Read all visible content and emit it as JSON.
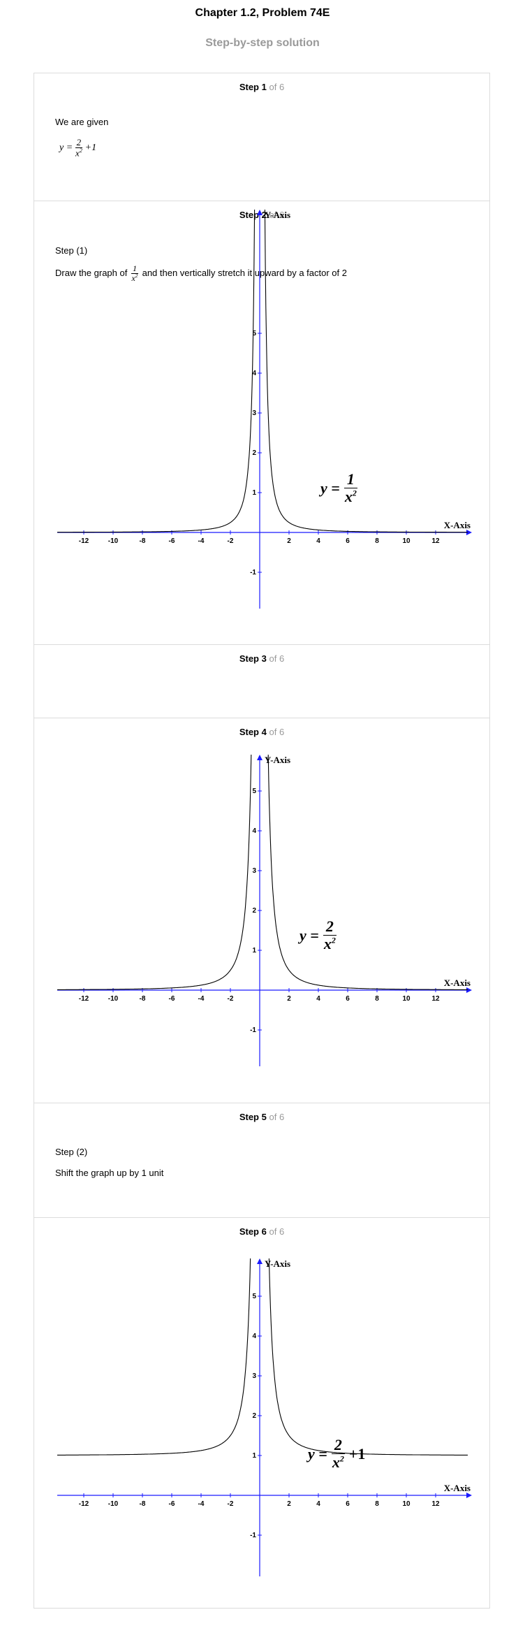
{
  "header": {
    "title": "Chapter 1.2, Problem 74E",
    "subtitle": "Step-by-step solution"
  },
  "step_word": "Step",
  "of_text": "of 6",
  "steps": [
    {
      "number": "1",
      "intro": "We are given",
      "equation": {
        "lhs": "y",
        "num": "2",
        "den": "x",
        "den_exp": "2",
        "tail": "+1"
      }
    },
    {
      "number": "2",
      "label": "Step (1)",
      "text_before": "Draw the graph of",
      "frac_num": "1",
      "frac_den": "x",
      "frac_den_exp": "2",
      "text_after": "and then vertically stretch it upward by a factor of 2"
    },
    {
      "number": "3"
    },
    {
      "number": "4"
    },
    {
      "number": "5",
      "label": "Step (2)",
      "text": "Shift the graph up by 1 unit"
    },
    {
      "number": "6"
    }
  ],
  "graphs": [
    {
      "equation": {
        "lhs": "y =",
        "num": "1",
        "den": "x",
        "exp": "2",
        "tail": ""
      },
      "chart_data": {
        "type": "line",
        "function": "y = 1/x^2",
        "a": 1,
        "c": 0,
        "xlim": [
          -14,
          14
        ],
        "ylim": [
          -2,
          6
        ],
        "xlabel": "X-Axis",
        "ylabel": "Y-Axis",
        "x_ticks": [
          "-12",
          "-10",
          "-8",
          "-6",
          "-4",
          "-2",
          "2",
          "4",
          "6",
          "8",
          "10",
          "12"
        ],
        "y_ticks": [
          "-1",
          "1",
          "2",
          "3",
          "4",
          "5"
        ]
      }
    },
    {
      "equation": {
        "lhs": "y =",
        "num": "2",
        "den": "x",
        "exp": "2",
        "tail": ""
      },
      "chart_data": {
        "type": "line",
        "function": "y = 2/x^2",
        "a": 2,
        "c": 0,
        "xlim": [
          -14,
          14
        ],
        "ylim": [
          -2,
          6
        ],
        "xlabel": "X-Axis",
        "ylabel": "Y-Axis",
        "x_ticks": [
          "-12",
          "-10",
          "-8",
          "-6",
          "-4",
          "-2",
          "2",
          "4",
          "6",
          "8",
          "10",
          "12"
        ],
        "y_ticks": [
          "-1",
          "1",
          "2",
          "3",
          "4",
          "5"
        ]
      }
    },
    {
      "equation": {
        "lhs": "y =",
        "num": "2",
        "den": "x",
        "exp": "2",
        "tail": "+1"
      },
      "chart_data": {
        "type": "line",
        "function": "y = 2/x^2 + 1",
        "a": 2,
        "c": 1,
        "xlim": [
          -14,
          14
        ],
        "ylim": [
          -2,
          6
        ],
        "xlabel": "X-Axis",
        "ylabel": "Y-Axis",
        "x_ticks": [
          "-12",
          "-10",
          "-8",
          "-6",
          "-4",
          "-2",
          "2",
          "4",
          "6",
          "8",
          "10",
          "12"
        ],
        "y_ticks": [
          "-1",
          "1",
          "2",
          "3",
          "4",
          "5"
        ]
      }
    }
  ],
  "colors": {
    "axis": "#1a1aff",
    "curve": "#000000",
    "border": "#dcdcdc",
    "muted": "#9a9a9a"
  }
}
